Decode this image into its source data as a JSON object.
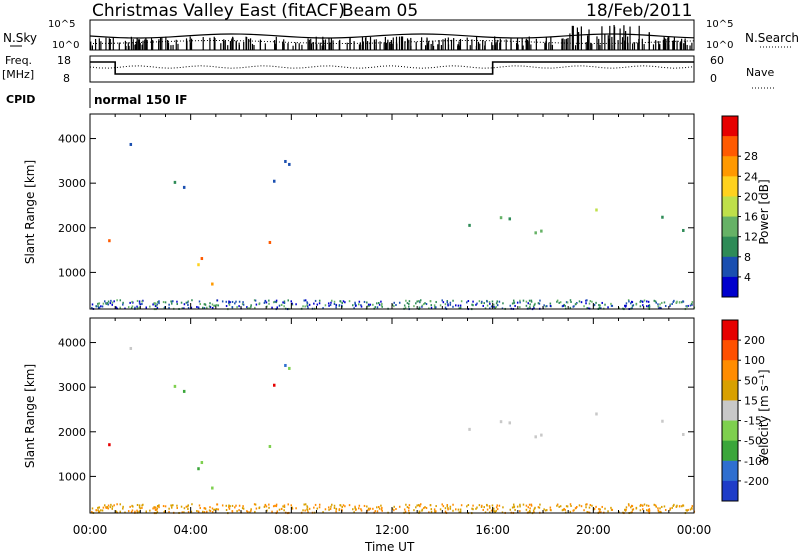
{
  "header": {
    "title": "Christmas Valley East (fitACF)",
    "beam": "Beam 05",
    "date": "18/Feb/2011"
  },
  "small_panels": {
    "nsky_label": "N.Sky",
    "nsearch_label": "N.Search",
    "freq_label": "Freq.",
    "freq_unit": "[MHz]",
    "nave_label": "Nave",
    "cpid_label": "CPID",
    "cpid_text": "normal 150 IF",
    "noise_left_ticks": [
      "10^5",
      "10^0"
    ],
    "noise_right_ticks": [
      "10^5",
      "10^0"
    ],
    "freq_ticks": [
      "18",
      "8"
    ],
    "nave_ticks": [
      "60",
      "0"
    ]
  },
  "colors": {
    "power_scale": [
      "#0000cc",
      "#1a4fb0",
      "#2e8b57",
      "#66b266",
      "#bfe04a",
      "#ffd21e",
      "#ff9900",
      "#ff5a00",
      "#e60000"
    ],
    "velocity_scale": [
      "#1e3cc8",
      "#2f6fd0",
      "#3aa63a",
      "#7ed04e",
      "#c8c8c8",
      "#d8a000",
      "#ff8c00",
      "#ff5000",
      "#e60000"
    ]
  },
  "chart_data": [
    {
      "type": "heatmap",
      "name": "power",
      "ylabel": "Slant Range [km]",
      "xlabel": "",
      "x_ticks": [
        "00:00",
        "04:00",
        "08:00",
        "12:00",
        "16:00",
        "20:00",
        "00:00"
      ],
      "y_ticks": [
        "1000",
        "2000",
        "3000",
        "4000"
      ],
      "ylim": [
        180,
        4550
      ],
      "colorbar": {
        "label": "Power [dB]",
        "ticks": [
          "4",
          "8",
          "12",
          "16",
          "20",
          "24",
          "28"
        ]
      }
    },
    {
      "type": "heatmap",
      "name": "velocity",
      "ylabel": "Slant Range [km]",
      "xlabel": "Time UT",
      "x_ticks": [
        "00:00",
        "04:00",
        "08:00",
        "12:00",
        "16:00",
        "20:00",
        "00:00"
      ],
      "y_ticks": [
        "1000",
        "2000",
        "3000",
        "4000"
      ],
      "ylim": [
        180,
        4550
      ],
      "colorbar": {
        "label": "Velocity [m s⁻¹]",
        "ticks": [
          "200",
          "100",
          "50",
          "15",
          "-15",
          "-50",
          "-100",
          "-200"
        ]
      }
    }
  ]
}
